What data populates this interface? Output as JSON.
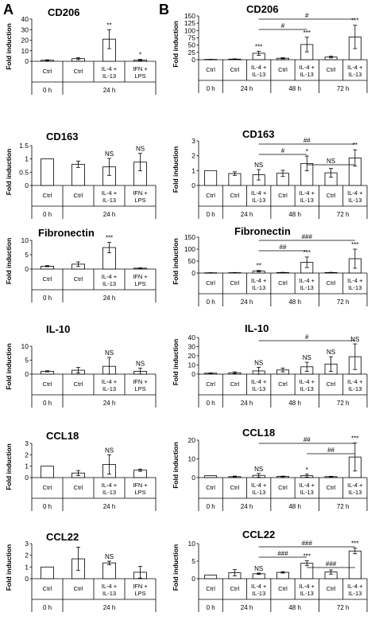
{
  "panels": [
    {
      "letter": "A"
    },
    {
      "letter": "B"
    }
  ],
  "chart_data": [
    {
      "panel": "A",
      "type": "bar",
      "title": "CD206",
      "ylabel": "Fold induction",
      "ylim": [
        0,
        40
      ],
      "yticks": [
        0,
        10,
        20,
        30,
        40
      ],
      "categories": [
        "Ctrl",
        "Ctrl",
        "IL-4 + IL-13",
        "IFN + LPS"
      ],
      "values": [
        1,
        2.5,
        21,
        1.2
      ],
      "errors": [
        0.4,
        1.0,
        9,
        0.6
      ],
      "annotations": [
        "",
        "",
        "**",
        "*"
      ],
      "groups": [
        {
          "label": "0 h",
          "span": [
            0,
            0
          ]
        },
        {
          "label": "24 h",
          "span": [
            1,
            3
          ]
        }
      ],
      "brackets": []
    },
    {
      "panel": "A",
      "type": "bar",
      "title": "CD163",
      "ylabel": "Fold induction",
      "ylim": [
        0,
        1.5
      ],
      "yticks": [
        0,
        0.5,
        1,
        1.5
      ],
      "categories": [
        "Ctrl",
        "Ctrl",
        "IL-4 + IL-13",
        "IFN + LPS"
      ],
      "values": [
        1,
        0.8,
        0.7,
        0.88
      ],
      "errors": [
        0,
        0.12,
        0.32,
        0.33
      ],
      "annotations": [
        "",
        "",
        "NS",
        "NS"
      ],
      "groups": [
        {
          "label": "0 h",
          "span": [
            0,
            0
          ]
        },
        {
          "label": "24 h",
          "span": [
            1,
            3
          ]
        }
      ],
      "brackets": []
    },
    {
      "panel": "A",
      "type": "bar",
      "title": "Fibronectin",
      "ylabel": "Fold induction",
      "ylim": [
        0,
        10
      ],
      "yticks": [
        0,
        5,
        10
      ],
      "categories": [
        "Ctrl",
        "Ctrl",
        "IL-4 + IL-13",
        "IFN + LPS"
      ],
      "values": [
        1,
        1.7,
        7.5,
        0.3
      ],
      "errors": [
        0.2,
        0.8,
        1.8,
        0.1
      ],
      "annotations": [
        "",
        "",
        "***",
        ""
      ],
      "groups": [
        {
          "label": "0 h",
          "span": [
            0,
            0
          ]
        },
        {
          "label": "24 h",
          "span": [
            1,
            3
          ]
        }
      ],
      "brackets": []
    },
    {
      "panel": "A",
      "type": "bar",
      "title": "IL-10",
      "ylabel": "Fold induction",
      "ylim": [
        0,
        10
      ],
      "yticks": [
        0,
        5,
        10
      ],
      "categories": [
        "Ctrl",
        "Ctrl",
        "IL-4 + IL-13",
        "IFN + LPS"
      ],
      "values": [
        1,
        1.4,
        2.8,
        1.0
      ],
      "errors": [
        0.2,
        1.0,
        3.2,
        1.1
      ],
      "annotations": [
        "",
        "",
        "NS",
        "NS"
      ],
      "groups": [
        {
          "label": "0 h",
          "span": [
            0,
            0
          ]
        },
        {
          "label": "24 h",
          "span": [
            1,
            3
          ]
        }
      ],
      "brackets": []
    },
    {
      "panel": "A",
      "type": "bar",
      "title": "CCL18",
      "ylabel": "Fold induction",
      "ylim": [
        0,
        3
      ],
      "yticks": [
        0,
        1,
        2,
        3
      ],
      "categories": [
        "Ctrl",
        "Ctrl",
        "IL-4 + IL-13",
        "IFN + LPS"
      ],
      "values": [
        1,
        0.4,
        1.15,
        0.65
      ],
      "errors": [
        0,
        0.22,
        0.85,
        0.1
      ],
      "annotations": [
        "",
        "",
        "NS",
        ""
      ],
      "groups": [
        {
          "label": "0 h",
          "span": [
            0,
            0
          ]
        },
        {
          "label": "24 h",
          "span": [
            1,
            3
          ]
        }
      ],
      "brackets": []
    },
    {
      "panel": "A",
      "type": "bar",
      "title": "CCL22",
      "ylabel": "Fold induction",
      "ylim": [
        0,
        3
      ],
      "yticks": [
        0,
        1,
        2,
        3
      ],
      "categories": [
        "Ctrl",
        "Ctrl",
        "IL-4 + IL-13",
        "IFN + LPS"
      ],
      "values": [
        1,
        1.7,
        1.35,
        0.55
      ],
      "errors": [
        0,
        1.0,
        0.15,
        0.5
      ],
      "annotations": [
        "",
        "",
        "NS",
        ""
      ],
      "groups": [
        {
          "label": "0 h",
          "span": [
            0,
            0
          ]
        },
        {
          "label": "24 h",
          "span": [
            1,
            3
          ]
        }
      ],
      "brackets": []
    },
    {
      "panel": "B",
      "type": "bar",
      "title": "CD206",
      "ylabel": "Fold induction",
      "ylim": [
        0,
        150
      ],
      "yticks": [
        0,
        25,
        50,
        75,
        100,
        125,
        150
      ],
      "categories": [
        "Ctrl",
        "Ctrl",
        "IL-4 + IL-13",
        "Ctrl",
        "IL-4 + IL-13",
        "Ctrl",
        "IL-4 + IL-13"
      ],
      "values": [
        1,
        2,
        22,
        5,
        52,
        9,
        78
      ],
      "errors": [
        0.3,
        1,
        7,
        2,
        25,
        3,
        40
      ],
      "annotations": [
        "",
        "",
        "***",
        "",
        "***",
        "",
        "***"
      ],
      "groups": [
        {
          "label": "0 h",
          "span": [
            0,
            0
          ]
        },
        {
          "label": "24 h",
          "span": [
            1,
            2
          ]
        },
        {
          "label": "48 h",
          "span": [
            3,
            4
          ]
        },
        {
          "label": "72 h",
          "span": [
            5,
            6
          ]
        }
      ],
      "brackets": [
        {
          "from": 2,
          "to": 6,
          "label": "#"
        },
        {
          "from": 2,
          "to": 4,
          "label": "#"
        }
      ]
    },
    {
      "panel": "B",
      "type": "bar",
      "title": "CD163",
      "ylabel": "Fold induction",
      "ylim": [
        0,
        3
      ],
      "yticks": [
        0,
        1,
        2,
        3
      ],
      "categories": [
        "Ctrl",
        "Ctrl",
        "IL-4 + IL-13",
        "Ctrl",
        "IL-4 + IL-13",
        "Ctrl",
        "IL-4 + IL-13"
      ],
      "values": [
        1,
        0.8,
        0.72,
        0.82,
        1.48,
        0.85,
        1.85
      ],
      "errors": [
        0,
        0.12,
        0.35,
        0.2,
        0.5,
        0.3,
        0.55
      ],
      "annotations": [
        "",
        "",
        "NS",
        "",
        "*",
        "",
        "**"
      ],
      "groups": [
        {
          "label": "0 h",
          "span": [
            0,
            0
          ]
        },
        {
          "label": "24 h",
          "span": [
            1,
            2
          ]
        },
        {
          "label": "48 h",
          "span": [
            3,
            4
          ]
        },
        {
          "label": "72 h",
          "span": [
            5,
            6
          ]
        }
      ],
      "brackets": [
        {
          "from": 2,
          "to": 6,
          "label": "##"
        },
        {
          "from": 2,
          "to": 4,
          "label": "#"
        },
        {
          "from": 4,
          "to": 6,
          "label": "NS"
        }
      ]
    },
    {
      "panel": "B",
      "type": "bar",
      "title": "Fibronectin",
      "ylabel": "Fold induction",
      "ylim": [
        0,
        150
      ],
      "yticks": [
        0,
        50,
        100,
        150
      ],
      "categories": [
        "Ctrl",
        "Ctrl",
        "IL-4 + IL-13",
        "Ctrl",
        "IL-4 + IL-13",
        "Ctrl",
        "IL-4 + IL-13"
      ],
      "values": [
        1,
        1.5,
        8,
        2,
        45,
        2,
        60
      ],
      "errors": [
        0.2,
        0.8,
        3,
        1,
        22,
        1,
        40
      ],
      "annotations": [
        "",
        "",
        "**",
        "",
        "***",
        "",
        "***"
      ],
      "groups": [
        {
          "label": "0 h",
          "span": [
            0,
            0
          ]
        },
        {
          "label": "24 h",
          "span": [
            1,
            2
          ]
        },
        {
          "label": "48 h",
          "span": [
            3,
            4
          ]
        },
        {
          "label": "72 h",
          "span": [
            5,
            6
          ]
        }
      ],
      "brackets": [
        {
          "from": 2,
          "to": 6,
          "label": "###"
        },
        {
          "from": 2,
          "to": 4,
          "label": "##"
        }
      ]
    },
    {
      "panel": "B",
      "type": "bar",
      "title": "IL-10",
      "ylabel": "Fold induction",
      "ylim": [
        0,
        40
      ],
      "yticks": [
        0,
        10,
        20,
        30,
        40
      ],
      "categories": [
        "Ctrl",
        "Ctrl",
        "IL-4 + IL-13",
        "Ctrl",
        "IL-4 + IL-13",
        "Ctrl",
        "IL-4 + IL-13"
      ],
      "values": [
        1,
        1.5,
        3.5,
        4.5,
        8,
        11,
        19
      ],
      "errors": [
        0.3,
        1,
        4,
        2,
        5,
        8,
        14
      ],
      "annotations": [
        "",
        "",
        "NS",
        "",
        "NS",
        "NS",
        "NS"
      ],
      "groups": [
        {
          "label": "0 h",
          "span": [
            0,
            0
          ]
        },
        {
          "label": "24 h",
          "span": [
            1,
            2
          ]
        },
        {
          "label": "48 h",
          "span": [
            3,
            4
          ]
        },
        {
          "label": "72 h",
          "span": [
            5,
            6
          ]
        }
      ],
      "brackets": [
        {
          "from": 2,
          "to": 6,
          "label": "#"
        }
      ]
    },
    {
      "panel": "B",
      "type": "bar",
      "title": "CCL18",
      "ylabel": "Fold induction",
      "ylim": [
        0,
        20
      ],
      "yticks": [
        0,
        10,
        20
      ],
      "categories": [
        "Ctrl",
        "Ctrl",
        "IL-4 + IL-13",
        "Ctrl",
        "IL-4 + IL-13",
        "Ctrl",
        "IL-4 + IL-13"
      ],
      "values": [
        1,
        0.5,
        1.2,
        0.6,
        1.0,
        0.5,
        11
      ],
      "errors": [
        0,
        0.3,
        1.0,
        0.2,
        0.8,
        0.2,
        7.5
      ],
      "annotations": [
        "",
        "",
        "NS",
        "",
        "*",
        "",
        "***"
      ],
      "groups": [
        {
          "label": "0 h",
          "span": [
            0,
            0
          ]
        },
        {
          "label": "24 h",
          "span": [
            1,
            2
          ]
        },
        {
          "label": "48 h",
          "span": [
            3,
            4
          ]
        },
        {
          "label": "72 h",
          "span": [
            5,
            6
          ]
        }
      ],
      "brackets": [
        {
          "from": 2,
          "to": 6,
          "label": "##"
        },
        {
          "from": 4,
          "to": 6,
          "label": "##"
        }
      ]
    },
    {
      "panel": "B",
      "type": "bar",
      "title": "CCL22",
      "ylabel": "Fold induction",
      "ylim": [
        0,
        10
      ],
      "yticks": [
        0,
        5,
        10
      ],
      "categories": [
        "Ctrl",
        "Ctrl",
        "IL-4 + IL-13",
        "Ctrl",
        "IL-4 + IL-13",
        "Ctrl",
        "IL-4 + IL-13"
      ],
      "values": [
        1,
        1.7,
        1.4,
        1.8,
        4.4,
        1.9,
        7.9
      ],
      "errors": [
        0,
        0.9,
        0.2,
        0.2,
        0.7,
        0.6,
        0.8
      ],
      "annotations": [
        "",
        "",
        "NS",
        "",
        "***",
        "",
        "***"
      ],
      "groups": [
        {
          "label": "0 h",
          "span": [
            0,
            0
          ]
        },
        {
          "label": "24 h",
          "span": [
            1,
            2
          ]
        },
        {
          "label": "48 h",
          "span": [
            3,
            4
          ]
        },
        {
          "label": "72 h",
          "span": [
            5,
            6
          ]
        }
      ],
      "brackets": [
        {
          "from": 2,
          "to": 6,
          "label": "###"
        },
        {
          "from": 2,
          "to": 4,
          "label": "###"
        },
        {
          "from": 4,
          "to": 6,
          "label": "###"
        }
      ]
    }
  ]
}
